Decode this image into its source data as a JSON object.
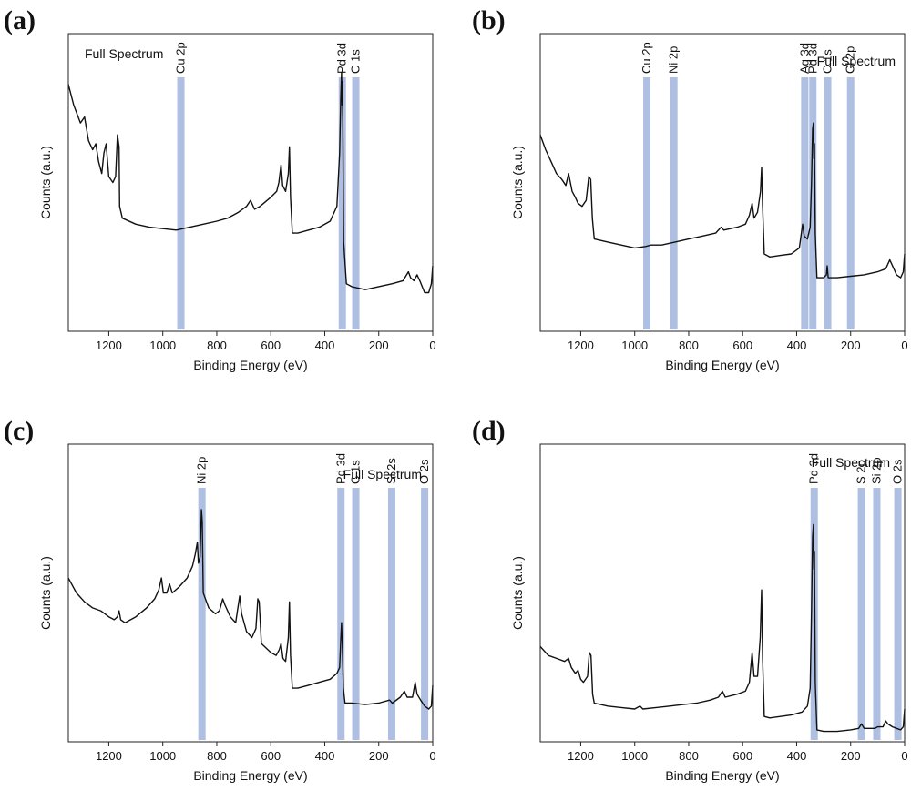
{
  "chart_data": [
    {
      "type": "line",
      "panel": "(a)",
      "annotation": "Full Spectrum",
      "xlabel": "Binding Energy (eV)",
      "ylabel": "Counts (a.u.)",
      "xlim": [
        1350,
        0
      ],
      "ylim": [
        0,
        1
      ],
      "x_ticks": [
        1200,
        1000,
        800,
        600,
        400,
        200,
        0
      ],
      "peak_labels": [
        {
          "label": "Cu 2p",
          "x": 933
        },
        {
          "label": "Pd 3d",
          "x": 335
        },
        {
          "label": "C 1s",
          "x": 285
        }
      ],
      "spectrum": [
        [
          1350,
          0.83
        ],
        [
          1330,
          0.76
        ],
        [
          1305,
          0.7
        ],
        [
          1290,
          0.72
        ],
        [
          1275,
          0.64
        ],
        [
          1260,
          0.61
        ],
        [
          1248,
          0.63
        ],
        [
          1238,
          0.57
        ],
        [
          1226,
          0.53
        ],
        [
          1218,
          0.6
        ],
        [
          1210,
          0.63
        ],
        [
          1200,
          0.52
        ],
        [
          1185,
          0.5
        ],
        [
          1175,
          0.52
        ],
        [
          1168,
          0.66
        ],
        [
          1162,
          0.62
        ],
        [
          1160,
          0.42
        ],
        [
          1150,
          0.38
        ],
        [
          1100,
          0.36
        ],
        [
          1050,
          0.35
        ],
        [
          1000,
          0.345
        ],
        [
          950,
          0.34
        ],
        [
          900,
          0.35
        ],
        [
          850,
          0.36
        ],
        [
          800,
          0.37
        ],
        [
          760,
          0.38
        ],
        [
          720,
          0.4
        ],
        [
          690,
          0.42
        ],
        [
          675,
          0.44
        ],
        [
          660,
          0.41
        ],
        [
          640,
          0.42
        ],
        [
          600,
          0.45
        ],
        [
          578,
          0.47
        ],
        [
          570,
          0.5
        ],
        [
          562,
          0.56
        ],
        [
          556,
          0.49
        ],
        [
          545,
          0.47
        ],
        [
          535,
          0.53
        ],
        [
          531,
          0.62
        ],
        [
          527,
          0.45
        ],
        [
          520,
          0.33
        ],
        [
          500,
          0.33
        ],
        [
          460,
          0.34
        ],
        [
          420,
          0.35
        ],
        [
          380,
          0.37
        ],
        [
          355,
          0.42
        ],
        [
          345,
          0.6
        ],
        [
          341,
          0.78
        ],
        [
          338,
          0.87
        ],
        [
          336,
          0.76
        ],
        [
          335,
          0.84
        ],
        [
          333,
          0.7
        ],
        [
          330,
          0.3
        ],
        [
          320,
          0.16
        ],
        [
          300,
          0.15
        ],
        [
          250,
          0.14
        ],
        [
          200,
          0.15
        ],
        [
          150,
          0.16
        ],
        [
          110,
          0.17
        ],
        [
          90,
          0.2
        ],
        [
          82,
          0.18
        ],
        [
          70,
          0.17
        ],
        [
          58,
          0.19
        ],
        [
          48,
          0.17
        ],
        [
          30,
          0.13
        ],
        [
          15,
          0.13
        ],
        [
          5,
          0.16
        ],
        [
          0,
          0.22
        ]
      ]
    },
    {
      "type": "line",
      "panel": "(b)",
      "annotation": "Full Spectrum",
      "xlabel": "Binding Energy (eV)",
      "ylabel": "Counts (a.u.)",
      "xlim": [
        1350,
        0
      ],
      "ylim": [
        0,
        1
      ],
      "x_ticks": [
        1200,
        1000,
        800,
        600,
        400,
        200,
        0
      ],
      "peak_labels": [
        {
          "label": "Cu 2p",
          "x": 955
        },
        {
          "label": "Ni 2p",
          "x": 855
        },
        {
          "label": "Ag 3d",
          "x": 370
        },
        {
          "label": "Pd 3d",
          "x": 340
        },
        {
          "label": "C 1s",
          "x": 285
        },
        {
          "label": "Cl 2p",
          "x": 200
        }
      ],
      "spectrum": [
        [
          1350,
          0.66
        ],
        [
          1330,
          0.61
        ],
        [
          1310,
          0.57
        ],
        [
          1290,
          0.53
        ],
        [
          1270,
          0.51
        ],
        [
          1255,
          0.49
        ],
        [
          1245,
          0.53
        ],
        [
          1232,
          0.47
        ],
        [
          1220,
          0.45
        ],
        [
          1210,
          0.43
        ],
        [
          1195,
          0.42
        ],
        [
          1180,
          0.44
        ],
        [
          1170,
          0.52
        ],
        [
          1163,
          0.51
        ],
        [
          1157,
          0.38
        ],
        [
          1150,
          0.31
        ],
        [
          1100,
          0.3
        ],
        [
          1050,
          0.29
        ],
        [
          1000,
          0.28
        ],
        [
          960,
          0.285
        ],
        [
          940,
          0.29
        ],
        [
          900,
          0.29
        ],
        [
          850,
          0.3
        ],
        [
          800,
          0.31
        ],
        [
          750,
          0.32
        ],
        [
          700,
          0.33
        ],
        [
          680,
          0.35
        ],
        [
          670,
          0.34
        ],
        [
          620,
          0.35
        ],
        [
          590,
          0.36
        ],
        [
          575,
          0.39
        ],
        [
          565,
          0.43
        ],
        [
          558,
          0.38
        ],
        [
          545,
          0.4
        ],
        [
          534,
          0.47
        ],
        [
          530,
          0.55
        ],
        [
          526,
          0.42
        ],
        [
          520,
          0.26
        ],
        [
          500,
          0.25
        ],
        [
          460,
          0.255
        ],
        [
          420,
          0.26
        ],
        [
          390,
          0.28
        ],
        [
          378,
          0.36
        ],
        [
          372,
          0.32
        ],
        [
          360,
          0.31
        ],
        [
          350,
          0.35
        ],
        [
          345,
          0.5
        ],
        [
          341,
          0.68
        ],
        [
          338,
          0.7
        ],
        [
          336,
          0.58
        ],
        [
          334,
          0.63
        ],
        [
          331,
          0.33
        ],
        [
          325,
          0.18
        ],
        [
          300,
          0.18
        ],
        [
          290,
          0.19
        ],
        [
          287,
          0.22
        ],
        [
          283,
          0.18
        ],
        [
          250,
          0.18
        ],
        [
          200,
          0.185
        ],
        [
          150,
          0.19
        ],
        [
          100,
          0.2
        ],
        [
          70,
          0.21
        ],
        [
          55,
          0.24
        ],
        [
          45,
          0.22
        ],
        [
          30,
          0.19
        ],
        [
          15,
          0.18
        ],
        [
          5,
          0.2
        ],
        [
          0,
          0.26
        ]
      ]
    },
    {
      "type": "line",
      "panel": "(c)",
      "annotation": "Full Spectrum",
      "xlabel": "Binding Energy (eV)",
      "ylabel": "Counts (a.u.)",
      "xlim": [
        1350,
        0
      ],
      "ylim": [
        0,
        1
      ],
      "x_ticks": [
        1200,
        1000,
        800,
        600,
        400,
        200,
        0
      ],
      "peak_labels": [
        {
          "label": "Ni 2p",
          "x": 855
        },
        {
          "label": "Pd 3d",
          "x": 340
        },
        {
          "label": "C 1s",
          "x": 285
        },
        {
          "label": "Si 2s",
          "x": 152
        },
        {
          "label": "O 2s",
          "x": 30
        }
      ],
      "spectrum": [
        [
          1350,
          0.55
        ],
        [
          1320,
          0.5
        ],
        [
          1290,
          0.47
        ],
        [
          1260,
          0.45
        ],
        [
          1230,
          0.44
        ],
        [
          1200,
          0.42
        ],
        [
          1180,
          0.41
        ],
        [
          1168,
          0.42
        ],
        [
          1162,
          0.44
        ],
        [
          1156,
          0.41
        ],
        [
          1140,
          0.4
        ],
        [
          1100,
          0.42
        ],
        [
          1060,
          0.45
        ],
        [
          1030,
          0.48
        ],
        [
          1015,
          0.51
        ],
        [
          1005,
          0.55
        ],
        [
          998,
          0.5
        ],
        [
          985,
          0.5
        ],
        [
          975,
          0.53
        ],
        [
          965,
          0.5
        ],
        [
          940,
          0.52
        ],
        [
          910,
          0.55
        ],
        [
          890,
          0.59
        ],
        [
          880,
          0.63
        ],
        [
          872,
          0.67
        ],
        [
          868,
          0.6
        ],
        [
          862,
          0.62
        ],
        [
          857,
          0.78
        ],
        [
          854,
          0.74
        ],
        [
          850,
          0.5
        ],
        [
          830,
          0.45
        ],
        [
          805,
          0.43
        ],
        [
          790,
          0.44
        ],
        [
          778,
          0.48
        ],
        [
          770,
          0.46
        ],
        [
          750,
          0.42
        ],
        [
          730,
          0.4
        ],
        [
          722,
          0.45
        ],
        [
          715,
          0.49
        ],
        [
          708,
          0.43
        ],
        [
          690,
          0.37
        ],
        [
          670,
          0.35
        ],
        [
          655,
          0.38
        ],
        [
          648,
          0.48
        ],
        [
          643,
          0.47
        ],
        [
          635,
          0.33
        ],
        [
          600,
          0.3
        ],
        [
          580,
          0.29
        ],
        [
          568,
          0.31
        ],
        [
          562,
          0.33
        ],
        [
          555,
          0.28
        ],
        [
          545,
          0.27
        ],
        [
          535,
          0.35
        ],
        [
          531,
          0.47
        ],
        [
          527,
          0.29
        ],
        [
          520,
          0.18
        ],
        [
          500,
          0.18
        ],
        [
          460,
          0.19
        ],
        [
          420,
          0.2
        ],
        [
          380,
          0.21
        ],
        [
          355,
          0.23
        ],
        [
          345,
          0.25
        ],
        [
          341,
          0.34
        ],
        [
          338,
          0.4
        ],
        [
          335,
          0.33
        ],
        [
          331,
          0.18
        ],
        [
          325,
          0.13
        ],
        [
          300,
          0.13
        ],
        [
          250,
          0.125
        ],
        [
          200,
          0.13
        ],
        [
          160,
          0.14
        ],
        [
          150,
          0.13
        ],
        [
          120,
          0.15
        ],
        [
          105,
          0.17
        ],
        [
          95,
          0.15
        ],
        [
          75,
          0.15
        ],
        [
          65,
          0.2
        ],
        [
          58,
          0.16
        ],
        [
          45,
          0.14
        ],
        [
          30,
          0.12
        ],
        [
          15,
          0.11
        ],
        [
          5,
          0.12
        ],
        [
          0,
          0.19
        ]
      ]
    },
    {
      "type": "line",
      "panel": "(d)",
      "annotation": "Full Spectrum",
      "xlabel": "Binding Energy (eV)",
      "ylabel": "Counts (a.u.)",
      "xlim": [
        1350,
        0
      ],
      "ylim": [
        0,
        1
      ],
      "x_ticks": [
        1200,
        1000,
        800,
        600,
        400,
        200,
        0
      ],
      "peak_labels": [
        {
          "label": "Pd 3d",
          "x": 335
        },
        {
          "label": "S 2p",
          "x": 160
        },
        {
          "label": "Si 2p",
          "x": 103
        },
        {
          "label": "O 2s",
          "x": 25
        }
      ],
      "spectrum": [
        [
          1350,
          0.32
        ],
        [
          1320,
          0.29
        ],
        [
          1290,
          0.28
        ],
        [
          1260,
          0.27
        ],
        [
          1245,
          0.28
        ],
        [
          1235,
          0.25
        ],
        [
          1220,
          0.23
        ],
        [
          1210,
          0.24
        ],
        [
          1200,
          0.21
        ],
        [
          1190,
          0.2
        ],
        [
          1175,
          0.22
        ],
        [
          1168,
          0.3
        ],
        [
          1162,
          0.29
        ],
        [
          1156,
          0.16
        ],
        [
          1150,
          0.13
        ],
        [
          1100,
          0.12
        ],
        [
          1050,
          0.115
        ],
        [
          1000,
          0.11
        ],
        [
          980,
          0.12
        ],
        [
          970,
          0.11
        ],
        [
          920,
          0.115
        ],
        [
          870,
          0.12
        ],
        [
          820,
          0.125
        ],
        [
          770,
          0.13
        ],
        [
          720,
          0.14
        ],
        [
          690,
          0.15
        ],
        [
          675,
          0.17
        ],
        [
          665,
          0.15
        ],
        [
          620,
          0.16
        ],
        [
          590,
          0.17
        ],
        [
          575,
          0.2
        ],
        [
          565,
          0.3
        ],
        [
          558,
          0.22
        ],
        [
          545,
          0.22
        ],
        [
          535,
          0.35
        ],
        [
          530,
          0.51
        ],
        [
          526,
          0.28
        ],
        [
          520,
          0.085
        ],
        [
          500,
          0.08
        ],
        [
          460,
          0.085
        ],
        [
          420,
          0.09
        ],
        [
          380,
          0.1
        ],
        [
          360,
          0.12
        ],
        [
          350,
          0.18
        ],
        [
          345,
          0.44
        ],
        [
          341,
          0.69
        ],
        [
          338,
          0.73
        ],
        [
          336,
          0.58
        ],
        [
          334,
          0.64
        ],
        [
          331,
          0.2
        ],
        [
          325,
          0.04
        ],
        [
          300,
          0.035
        ],
        [
          250,
          0.035
        ],
        [
          200,
          0.04
        ],
        [
          170,
          0.045
        ],
        [
          160,
          0.06
        ],
        [
          150,
          0.045
        ],
        [
          110,
          0.045
        ],
        [
          100,
          0.05
        ],
        [
          80,
          0.05
        ],
        [
          70,
          0.07
        ],
        [
          62,
          0.06
        ],
        [
          45,
          0.05
        ],
        [
          30,
          0.045
        ],
        [
          15,
          0.04
        ],
        [
          5,
          0.05
        ],
        [
          0,
          0.11
        ]
      ]
    }
  ]
}
